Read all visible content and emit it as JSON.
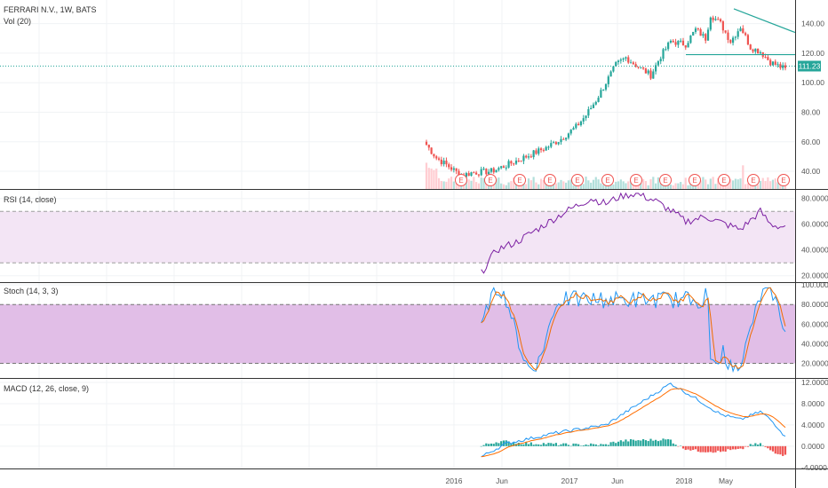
{
  "header": {
    "symbol_label": "FERRARI N.V., 1W, BATS",
    "volume_label": "Vol (20)"
  },
  "panels": {
    "rsi_label": "RSI (14, close)",
    "stoch_label": "Stoch (14, 3, 3)",
    "macd_label": "MACD (12, 26, close, 9)"
  },
  "colors": {
    "up": "#26a69a",
    "down": "#ef5350",
    "rsi_line": "#7b1fa2",
    "rsi_band": "#f3e5f5",
    "stoch_band": "#e1bee7",
    "stoch_k": "#2196f3",
    "stoch_d": "#ef6c00",
    "macd_line": "#2196f3",
    "signal_line": "#ff6d00",
    "trendline": "#26a69a",
    "price_line": "#26a69a",
    "earnings_marker": "#ef5350"
  },
  "earnings_marker_label": "E",
  "chart_data": [
    {
      "type": "candlestick",
      "title": "FERRARI N.V., 1W, BATS",
      "x_ticks": [
        "2016",
        "Jun",
        "2017",
        "Jun",
        "2018",
        "May"
      ],
      "y_ticks": [
        "140.00",
        "120.00",
        "100.00",
        "80.00",
        "60.00",
        "40.00"
      ],
      "ylim": [
        28,
        153
      ],
      "last_price": "111.23",
      "last_price_value": 111.23,
      "earnings_count": 12,
      "trendline_descending": [
        [
          150,
          134
        ]
      ],
      "support_line": 119
    },
    {
      "type": "line",
      "title": "RSI (14, close)",
      "y_ticks": [
        "80.0000",
        "60.0000",
        "40.0000",
        "20.0000"
      ],
      "ylim": [
        15,
        86
      ],
      "upper_band": 70,
      "lower_band": 30
    },
    {
      "type": "line",
      "title": "Stoch (14, 3, 3)",
      "y_ticks": [
        "100.0000",
        "80.0000",
        "60.0000",
        "40.0000",
        "20.0000"
      ],
      "ylim": [
        5,
        101
      ],
      "upper_band": 80,
      "lower_band": 20
    },
    {
      "type": "line",
      "title": "MACD (12, 26, close, 9)",
      "y_ticks": [
        "12.0000",
        "8.0000",
        "4.0000",
        "0.0000",
        "-4.0000"
      ],
      "ylim": [
        -4.2,
        12.5
      ]
    }
  ]
}
